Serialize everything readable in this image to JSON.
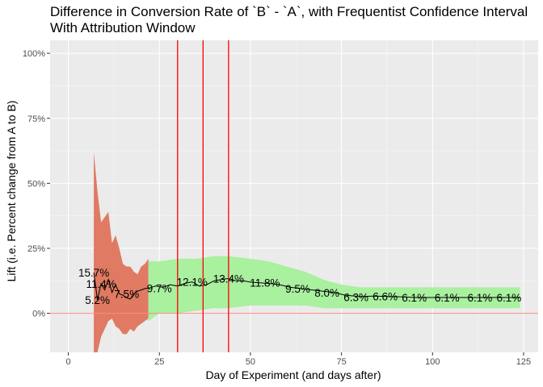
{
  "chart_data": {
    "type": "line",
    "title": "Difference in Conversion Rate of `B` - `A`, with Frequentist Confidence Interval",
    "subtitle": "With Attribution Window",
    "xlabel": "Day of Experiment (and days after)",
    "ylabel": "Lift (i.e. Percent change from A to B)",
    "xlim": [
      -5,
      129
    ],
    "ylim": [
      -15,
      105
    ],
    "xticks": [
      0,
      25,
      50,
      75,
      100,
      125
    ],
    "xtick_labels": [
      "0",
      "25",
      "50",
      "75",
      "100",
      "125"
    ],
    "yticks": [
      0,
      25,
      50,
      75,
      100
    ],
    "ytick_labels": [
      "0%",
      "25%",
      "50%",
      "75%",
      "100%"
    ],
    "grid": true,
    "colors": {
      "panel": "#ebebeb",
      "grid_major": "#ffffff",
      "ci_early": "#e07a63",
      "ci_late": "#a9f09f",
      "line": "#000000",
      "zero_line": "#ff8a80",
      "vlines": "#ff0000"
    },
    "reference_hline": 0,
    "vlines": [
      30,
      37,
      44
    ],
    "ci_early": {
      "x": [
        7,
        8,
        9,
        10,
        11,
        12,
        13,
        14,
        15,
        16,
        17,
        18,
        19,
        20,
        21,
        22
      ],
      "lower": [
        -15,
        -15,
        -9,
        -6,
        -3,
        -2,
        -5,
        -6,
        -8,
        -8,
        -6,
        -7,
        -5,
        -4,
        -3,
        -2
      ],
      "upper": [
        62,
        47,
        35,
        37,
        39,
        27,
        30,
        25,
        19,
        18,
        18,
        16,
        15,
        18,
        19,
        21
      ]
    },
    "ci_late": {
      "x": [
        22,
        25,
        30,
        35,
        40,
        44,
        50,
        55,
        60,
        65,
        70,
        75,
        80,
        85,
        90,
        95,
        100,
        105,
        110,
        115,
        120,
        124
      ],
      "lower": [
        -3,
        0,
        0,
        1,
        2,
        2,
        3,
        3,
        3,
        3,
        2,
        2,
        2,
        2,
        2,
        2,
        2,
        2,
        2,
        2,
        2,
        2
      ],
      "upper": [
        20,
        20,
        21,
        21,
        22,
        22,
        21,
        20,
        18,
        16,
        13,
        11,
        10,
        10,
        10,
        10,
        10,
        10,
        10,
        10,
        10,
        10
      ]
    },
    "lift_line": {
      "x": [
        7,
        8,
        9,
        10,
        11,
        12,
        13,
        14,
        15,
        16,
        17,
        18,
        19,
        20,
        21,
        22,
        24,
        26,
        28,
        30,
        32,
        34,
        36,
        38,
        40,
        42,
        44,
        46,
        48,
        50,
        52,
        55,
        58,
        61,
        64,
        67,
        70,
        73,
        76,
        80,
        84,
        88,
        92,
        95,
        100,
        105,
        110,
        115,
        120,
        124
      ],
      "y": [
        15.7,
        5.2,
        11.4,
        9,
        13,
        8,
        11,
        7.5,
        7,
        6,
        5.5,
        7.5,
        8.5,
        9,
        9.5,
        9.7,
        10.5,
        10,
        11,
        10.5,
        11.5,
        12.1,
        10.5,
        11,
        12.5,
        13,
        13.4,
        12.5,
        12.5,
        12,
        11.8,
        11.5,
        11,
        10,
        9.5,
        9,
        8.5,
        8,
        7,
        6.5,
        6.6,
        6.5,
        6.3,
        6.1,
        6.1,
        6.1,
        6.1,
        6.1,
        6.1,
        6.1
      ]
    },
    "annotations": [
      {
        "x": 7,
        "y": 15.7,
        "text": "15.7%"
      },
      {
        "x": 9,
        "y": 11.4,
        "text": "11.4%"
      },
      {
        "x": 8,
        "y": 5.2,
        "text": "5.2%"
      },
      {
        "x": 16,
        "y": 7.5,
        "text": "7.5%"
      },
      {
        "x": 25,
        "y": 9.7,
        "text": "9.7%"
      },
      {
        "x": 34,
        "y": 12.1,
        "text": "12.1%"
      },
      {
        "x": 44,
        "y": 13.4,
        "text": "13.4%"
      },
      {
        "x": 54,
        "y": 11.8,
        "text": "11.8%"
      },
      {
        "x": 63,
        "y": 9.5,
        "text": "9.5%"
      },
      {
        "x": 71,
        "y": 8.0,
        "text": "8.0%"
      },
      {
        "x": 79,
        "y": 6.3,
        "text": "6.3%"
      },
      {
        "x": 87,
        "y": 6.6,
        "text": "6.6%"
      },
      {
        "x": 95,
        "y": 6.1,
        "text": "6.1%"
      },
      {
        "x": 104,
        "y": 6.1,
        "text": "6.1%"
      },
      {
        "x": 113,
        "y": 6.1,
        "text": "6.1%"
      },
      {
        "x": 121,
        "y": 6.1,
        "text": "6.1%"
      }
    ]
  }
}
